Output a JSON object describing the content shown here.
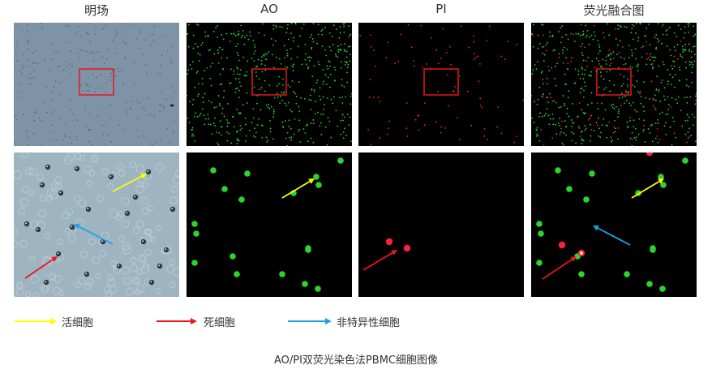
{
  "columns": {
    "brightfield": "明场",
    "ao": "AO",
    "pi": "PI",
    "merge": "荧光融合图"
  },
  "legend": {
    "live": {
      "label": "活细胞",
      "color": "#ffff00"
    },
    "dead": {
      "label": "死细胞",
      "color": "#e8161b"
    },
    "nonspecific": {
      "label": "非特异性细胞",
      "color": "#1aa3e8"
    }
  },
  "caption": "AO/PI双荧光染色法PBMC细胞图像",
  "colors": {
    "brightfield_bg": "#7f93a6",
    "zoom_bright_bg": "#9fb4c1",
    "fluor_bg": "#000000",
    "ao_green": "#2bd62b",
    "pi_red": "#ff1f3a",
    "roi_box": "#e8161b"
  }
}
